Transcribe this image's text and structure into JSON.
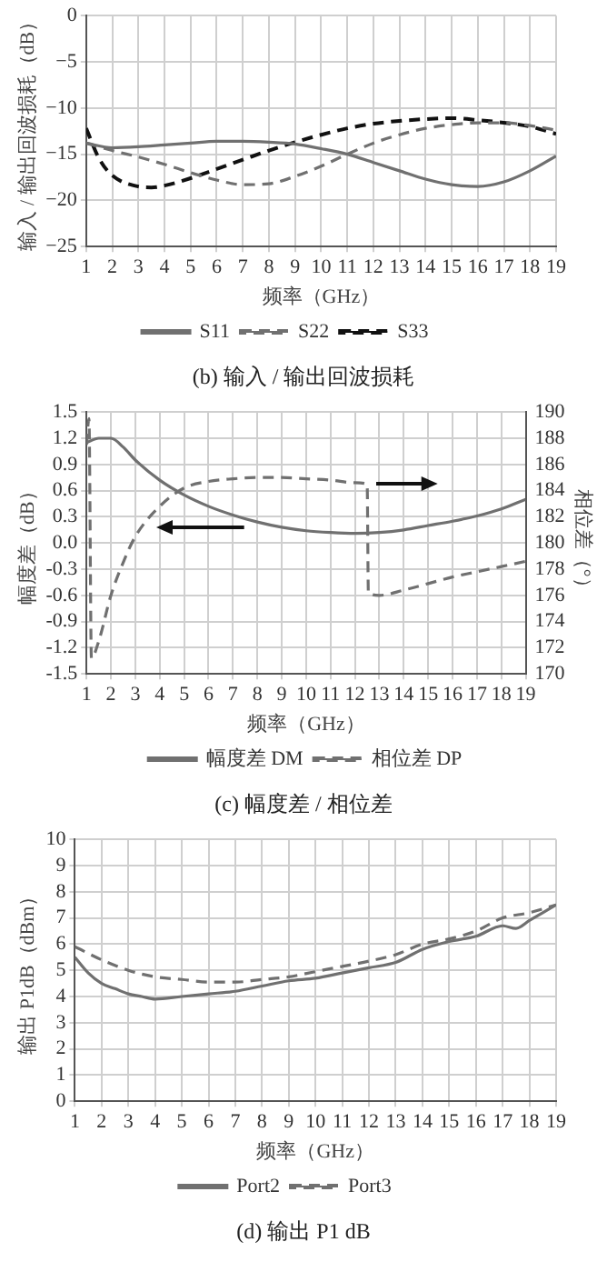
{
  "chart_data": [
    {
      "type": "line",
      "title": "(b) 输入 / 输出回波损耗",
      "xlabel": "频率（GHz）",
      "ylabel": "输入 / 输出回波损耗（dB）",
      "xlim": [
        1,
        19
      ],
      "xticks": [
        1,
        2,
        3,
        4,
        5,
        6,
        7,
        8,
        9,
        10,
        11,
        12,
        13,
        14,
        15,
        16,
        17,
        18,
        19
      ],
      "ylim": [
        -25,
        0
      ],
      "yticks": [
        {
          "value": -25,
          "label": "−25"
        },
        {
          "value": -20,
          "label": "−20"
        },
        {
          "value": -15,
          "label": "−15"
        },
        {
          "value": -10,
          "label": "−10"
        },
        {
          "value": -5,
          "label": "−5"
        },
        0
      ],
      "grid": true,
      "legend": "bottom",
      "marker": "none",
      "series": [
        {
          "name": "S11",
          "color": "#707070",
          "line_style": "solid",
          "x": [
            1,
            2,
            3,
            4,
            5,
            6,
            7,
            8,
            9,
            10,
            11,
            12,
            13,
            14,
            15,
            16,
            17,
            18,
            19
          ],
          "values": [
            -13.8,
            -14.3,
            -14.2,
            -14.0,
            -13.8,
            -13.6,
            -13.6,
            -13.7,
            -13.9,
            -14.4,
            -15.0,
            -15.9,
            -16.8,
            -17.7,
            -18.3,
            -18.5,
            -18.0,
            -16.8,
            -15.2
          ]
        },
        {
          "name": "S22",
          "color": "#707070",
          "line_style": "dashed",
          "x": [
            1,
            2,
            3,
            4,
            5,
            6,
            7,
            8,
            9,
            10,
            11,
            12,
            13,
            14,
            15,
            16,
            17,
            18,
            19
          ],
          "values": [
            -13.8,
            -14.6,
            -15.3,
            -16.1,
            -17.0,
            -17.8,
            -18.3,
            -18.2,
            -17.4,
            -16.3,
            -15.0,
            -13.8,
            -12.9,
            -12.2,
            -11.8,
            -11.6,
            -11.6,
            -11.9,
            -12.4
          ]
        },
        {
          "name": "S33",
          "color": "#111111",
          "line_style": "dashed",
          "x": [
            1,
            1.5,
            2,
            3,
            3.5,
            4,
            5,
            6,
            7,
            8,
            9,
            10,
            11,
            12,
            13,
            14,
            15,
            16,
            17,
            18,
            19
          ],
          "values": [
            -12.2,
            -15.5,
            -17.3,
            -18.5,
            -18.6,
            -18.4,
            -17.6,
            -16.6,
            -15.6,
            -14.6,
            -13.7,
            -12.9,
            -12.2,
            -11.7,
            -11.4,
            -11.2,
            -11.1,
            -11.3,
            -11.6,
            -12.0,
            -12.8
          ]
        }
      ]
    },
    {
      "type": "line",
      "title": "(c) 幅度差 / 相位差",
      "xlabel": "频率（GHz）",
      "ylabel": "幅度差（dB）",
      "y2label": "相位差（°）",
      "xlim": [
        1,
        19
      ],
      "xticks": [
        1,
        2,
        3,
        4,
        5,
        6,
        7,
        8,
        9,
        10,
        11,
        12,
        13,
        14,
        15,
        16,
        17,
        18,
        19
      ],
      "ylim": [
        -1.5,
        1.5
      ],
      "yticks": [
        -1.5,
        -1.2,
        -0.9,
        -0.6,
        -0.3,
        {
          "value": 0,
          "label": "0.0"
        },
        0.3,
        0.6,
        0.9,
        1.2,
        1.5
      ],
      "y2lim": [
        170,
        190
      ],
      "y2ticks": [
        170,
        172,
        174,
        176,
        178,
        180,
        182,
        184,
        186,
        188,
        190
      ],
      "grid": true,
      "legend": "bottom",
      "marker": "none",
      "series": [
        {
          "name": "幅度差 DM",
          "color": "#707070",
          "line_style": "solid",
          "x": [
            1,
            1.5,
            2,
            2.5,
            3,
            4,
            5,
            6,
            7,
            8,
            9,
            10,
            11,
            12,
            13,
            14,
            15,
            16,
            17,
            18,
            19
          ],
          "values": [
            1.15,
            1.2,
            1.2,
            1.1,
            0.95,
            0.72,
            0.55,
            0.42,
            0.32,
            0.24,
            0.18,
            0.14,
            0.12,
            0.11,
            0.12,
            0.15,
            0.2,
            0.25,
            0.31,
            0.39,
            0.5
          ]
        },
        {
          "name": "相位差 DP",
          "color": "#707070",
          "line_style": "dashed",
          "axis": "y2",
          "x": [
            1,
            1.1,
            1.2,
            1.5,
            2,
            2.5,
            3,
            4,
            5,
            6,
            7,
            8,
            9,
            10,
            11,
            12,
            12.5,
            12.55,
            13,
            14,
            15,
            16,
            17,
            18,
            19
          ],
          "values": [
            187.5,
            189.5,
            171.2,
            172.5,
            176,
            178.5,
            180.5,
            182.8,
            184.2,
            184.7,
            184.9,
            185,
            185,
            184.9,
            184.8,
            184.6,
            184.5,
            176.2,
            176,
            176.4,
            176.9,
            177.4,
            177.8,
            178.2,
            178.6
          ]
        }
      ]
    },
    {
      "type": "line",
      "title": "(d) 输出 P1 dB",
      "xlabel": "频率（GHz）",
      "ylabel": "输出 P1dB（dBm）",
      "xlim": [
        1,
        19
      ],
      "xticks": [
        1,
        2,
        3,
        4,
        5,
        6,
        7,
        8,
        9,
        10,
        11,
        12,
        13,
        14,
        15,
        16,
        17,
        18,
        19
      ],
      "ylim": [
        0,
        10
      ],
      "yticks": [
        0,
        1,
        2,
        3,
        4,
        5,
        6,
        7,
        8,
        9,
        10
      ],
      "grid": true,
      "legend": "bottom",
      "marker": "none",
      "series": [
        {
          "name": "Port2",
          "color": "#707070",
          "line_style": "solid",
          "x": [
            1,
            1.5,
            2,
            2.5,
            3,
            3.5,
            4,
            5,
            6,
            7,
            8,
            9,
            10,
            11,
            12,
            13,
            14,
            15,
            16,
            17,
            17.5,
            18,
            19
          ],
          "values": [
            5.5,
            4.9,
            4.5,
            4.3,
            4.1,
            4.0,
            3.9,
            4.0,
            4.1,
            4.2,
            4.4,
            4.6,
            4.7,
            4.9,
            5.1,
            5.3,
            5.8,
            6.1,
            6.3,
            6.7,
            6.6,
            6.9,
            7.5
          ]
        },
        {
          "name": "Port3",
          "color": "#707070",
          "line_style": "dashed",
          "x": [
            1,
            2,
            3,
            4,
            5,
            6,
            7,
            8,
            9,
            10,
            11,
            12,
            13,
            14,
            15,
            16,
            17,
            18,
            19
          ],
          "values": [
            5.9,
            5.4,
            5.0,
            4.75,
            4.65,
            4.55,
            4.55,
            4.65,
            4.75,
            4.95,
            5.15,
            5.35,
            5.6,
            6.0,
            6.2,
            6.5,
            7.0,
            7.2,
            7.5
          ]
        }
      ]
    }
  ]
}
